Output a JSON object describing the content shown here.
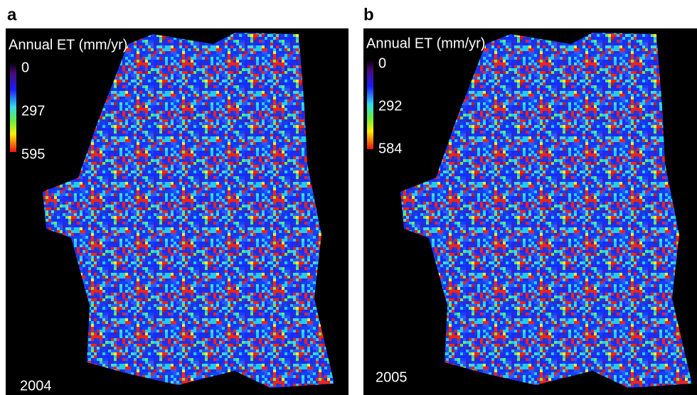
{
  "panels": [
    {
      "label": "a",
      "legend_title": "Annual ET (mm/yr)",
      "legend_ticks": [
        0,
        297,
        595
      ],
      "year": "2004"
    },
    {
      "label": "b",
      "legend_title": "Annual ET (mm/yr)",
      "legend_ticks": [
        0,
        292,
        584
      ],
      "year": "2005"
    }
  ]
}
